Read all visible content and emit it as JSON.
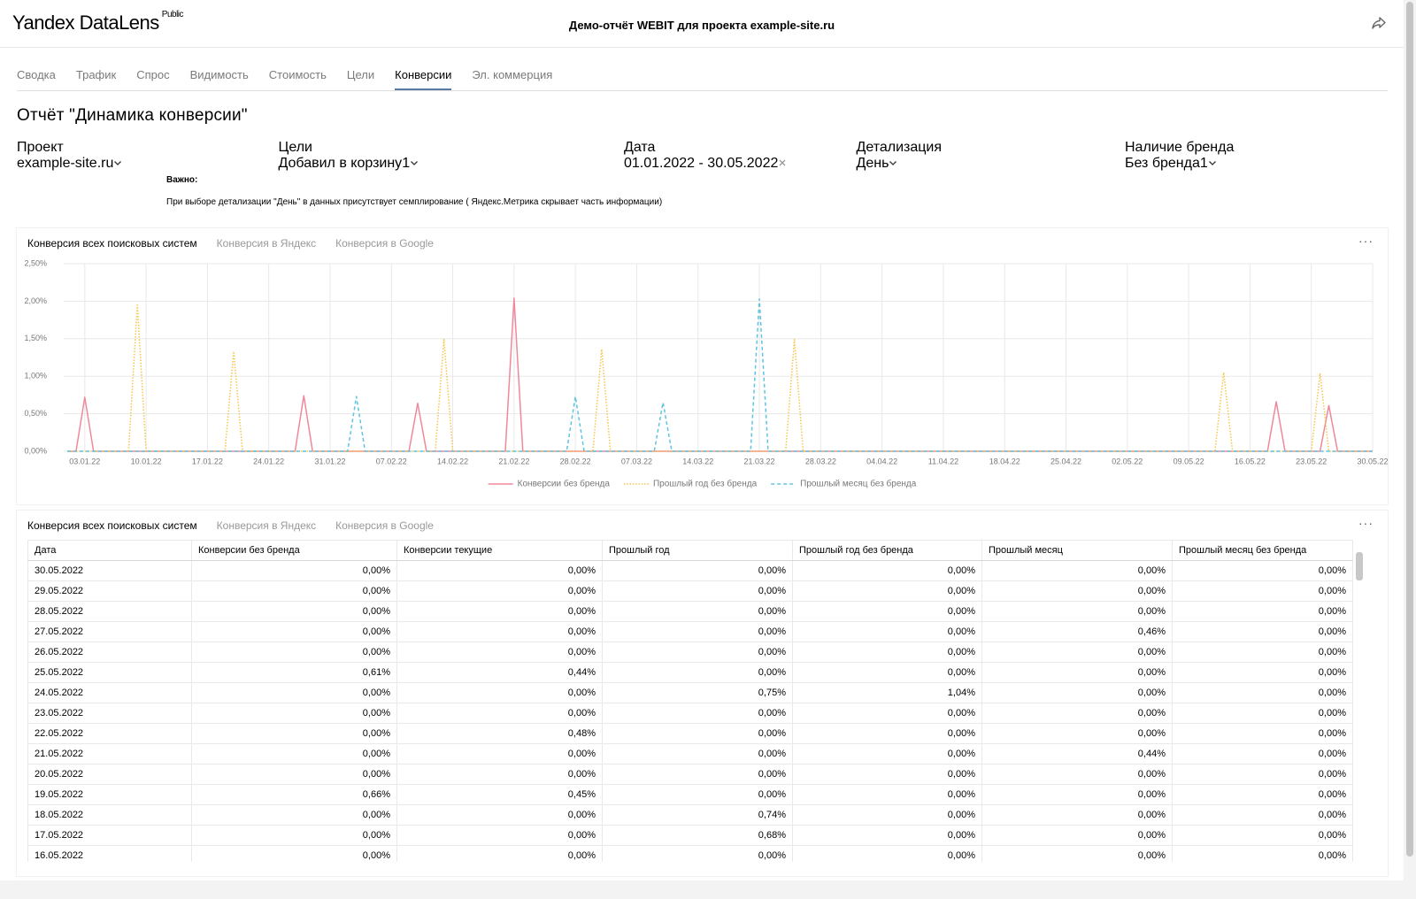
{
  "header": {
    "logo": "Yandex DataLens",
    "badge": "Public",
    "title": "Демо-отчёт WEBIT для проекта example-site.ru"
  },
  "tabs": {
    "items": [
      "Сводка",
      "Трафик",
      "Спрос",
      "Видимость",
      "Стоимость",
      "Цели",
      "Конверсии",
      "Эл. коммерция"
    ],
    "active": 6
  },
  "report_title": "Отчёт \"Динамика конверсии\"",
  "filters": [
    {
      "label": "Проект",
      "value": "example-site.ru",
      "icon": "chevron"
    },
    {
      "label": "Цели",
      "value": "Добавил в корзину",
      "count": 1,
      "icon": "chevron"
    },
    {
      "label": "Дата",
      "value": "01.01.2022 - 30.05.2022",
      "icon": "clear"
    },
    {
      "label": "Детализация",
      "value": "День",
      "icon": "chevron"
    },
    {
      "label": "Наличие бренда",
      "value": "Без бренда",
      "count": 1,
      "icon": "chevron"
    }
  ],
  "notice": {
    "title": "Важно:",
    "text": "При выборе детализации \"День\" в данных присутствует семплирование ( Яндекс.Метрика скрывает часть информации)"
  },
  "chart_tabs": {
    "items": [
      "Конверсия всех поисковых систем",
      "Конверсия в Яндекс",
      "Конверсия в Google"
    ],
    "active": 0
  },
  "chart_data": {
    "type": "line",
    "grid": true,
    "x": [
      "01.01.22",
      "02.01.22",
      "03.01.22",
      "04.01.22",
      "05.01.22",
      "06.01.22",
      "07.01.22",
      "08.01.22",
      "09.01.22",
      "10.01.22",
      "11.01.22",
      "12.01.22",
      "13.01.22",
      "14.01.22",
      "15.01.22",
      "16.01.22",
      "17.01.22",
      "18.01.22",
      "19.01.22",
      "20.01.22",
      "21.01.22",
      "22.01.22",
      "23.01.22",
      "24.01.22",
      "25.01.22",
      "26.01.22",
      "27.01.22",
      "28.01.22",
      "29.01.22",
      "30.01.22",
      "31.01.22",
      "01.02.22",
      "02.02.22",
      "03.02.22",
      "04.02.22",
      "05.02.22",
      "06.02.22",
      "07.02.22",
      "08.02.22",
      "09.02.22",
      "10.02.22",
      "11.02.22",
      "12.02.22",
      "13.02.22",
      "14.02.22",
      "15.02.22",
      "16.02.22",
      "17.02.22",
      "18.02.22",
      "19.02.22",
      "20.02.22",
      "21.02.22",
      "22.02.22",
      "23.02.22",
      "24.02.22",
      "25.02.22",
      "26.02.22",
      "27.02.22",
      "28.02.22",
      "01.03.22",
      "02.03.22",
      "03.03.22",
      "04.03.22",
      "05.03.22",
      "06.03.22",
      "07.03.22",
      "08.03.22",
      "09.03.22",
      "10.03.22",
      "11.03.22",
      "12.03.22",
      "13.03.22",
      "14.03.22",
      "15.03.22",
      "16.03.22",
      "17.03.22",
      "18.03.22",
      "19.03.22",
      "20.03.22",
      "21.03.22",
      "22.03.22",
      "23.03.22",
      "24.03.22",
      "25.03.22",
      "26.03.22",
      "27.03.22",
      "28.03.22",
      "29.03.22",
      "30.03.22",
      "31.03.22",
      "01.04.22",
      "02.04.22",
      "03.04.22",
      "04.04.22",
      "05.04.22",
      "06.04.22",
      "07.04.22",
      "08.04.22",
      "09.04.22",
      "10.04.22",
      "11.04.22",
      "12.04.22",
      "13.04.22",
      "14.04.22",
      "15.04.22",
      "16.04.22",
      "17.04.22",
      "18.04.22",
      "19.04.22",
      "20.04.22",
      "21.04.22",
      "22.04.22",
      "23.04.22",
      "24.04.22",
      "25.04.22",
      "26.04.22",
      "27.04.22",
      "28.04.22",
      "29.04.22",
      "30.04.22",
      "01.05.22",
      "02.05.22",
      "03.05.22",
      "04.05.22",
      "05.05.22",
      "06.05.22",
      "07.05.22",
      "08.05.22",
      "09.05.22",
      "10.05.22",
      "11.05.22",
      "12.05.22",
      "13.05.22",
      "14.05.22",
      "15.05.22",
      "16.05.22",
      "17.05.22",
      "18.05.22",
      "19.05.22",
      "20.05.22",
      "21.05.22",
      "22.05.22",
      "23.05.22",
      "24.05.22",
      "25.05.22",
      "26.05.22",
      "27.05.22",
      "28.05.22",
      "29.05.22",
      "30.05.22"
    ],
    "xticks": [
      "03.01.22",
      "10.01.22",
      "17.01.22",
      "24.01.22",
      "31.01.22",
      "07.02.22",
      "14.02.22",
      "21.02.22",
      "28.02.22",
      "07.03.22",
      "14.03.22",
      "21.03.22",
      "28.03.22",
      "04.04.22",
      "11.04.22",
      "18.04.22",
      "25.04.22",
      "02.05.22",
      "09.05.22",
      "16.05.22",
      "23.05.22",
      "30.05.22"
    ],
    "ylim": [
      0,
      2.5
    ],
    "yticks": [
      {
        "value": 0,
        "label": "0,00%"
      },
      {
        "value": 0.5,
        "label": "0,50%"
      },
      {
        "value": 1,
        "label": "1,00%"
      },
      {
        "value": 1.5,
        "label": "1,50%"
      },
      {
        "value": 2,
        "label": "2,00%"
      },
      {
        "value": 2.5,
        "label": "2,50%"
      }
    ],
    "series": [
      {
        "name": "Конверсии без бренда",
        "color": "#f0889b",
        "dash": "solid",
        "values": [
          0,
          0,
          0.72,
          0,
          0,
          0,
          0,
          0,
          0,
          0,
          0,
          0,
          0,
          0,
          0,
          0,
          0,
          0,
          0,
          0,
          0,
          0,
          0,
          0,
          0,
          0,
          0,
          0.74,
          0,
          0,
          0,
          0,
          0,
          0,
          0,
          0,
          0,
          0,
          0,
          0,
          0.64,
          0,
          0,
          0,
          0,
          0,
          0,
          0,
          0,
          0,
          0,
          2.04,
          0,
          0,
          0,
          0,
          0,
          0,
          0,
          0,
          0,
          0,
          0,
          0,
          0,
          0,
          0,
          0,
          0,
          0,
          0,
          0,
          0,
          0,
          0,
          0,
          0,
          0,
          0,
          0,
          0,
          0,
          0,
          0,
          0,
          0,
          0,
          0,
          0,
          0,
          0,
          0,
          0,
          0,
          0,
          0,
          0,
          0,
          0,
          0,
          0,
          0,
          0,
          0,
          0,
          0,
          0,
          0,
          0,
          0,
          0,
          0,
          0,
          0,
          0,
          0,
          0,
          0,
          0,
          0,
          0,
          0,
          0,
          0,
          0,
          0,
          0,
          0,
          0,
          0,
          0,
          0,
          0,
          0,
          0,
          0,
          0,
          0,
          0.66,
          0,
          0,
          0,
          0,
          0,
          0.61,
          0,
          0,
          0,
          0,
          0
        ]
      },
      {
        "name": "Прошлый год без бренда",
        "color": "#f5c548",
        "dash": "dotted",
        "values": [
          0,
          0,
          0,
          0,
          0,
          0,
          0,
          0,
          1.95,
          0,
          0,
          0,
          0,
          0,
          0,
          0,
          0,
          0,
          0,
          1.33,
          0,
          0,
          0,
          0,
          0,
          0,
          0,
          0,
          0,
          0,
          0,
          0,
          0,
          0,
          0,
          0,
          0,
          0,
          0,
          0,
          0,
          0,
          0,
          1.49,
          0,
          0,
          0,
          0,
          0,
          0,
          0,
          0,
          0,
          0,
          0,
          0,
          0,
          0,
          0,
          0,
          0,
          1.36,
          0,
          0,
          0,
          0,
          0,
          0,
          0,
          0,
          0,
          0,
          0,
          0,
          0,
          0,
          0,
          0,
          0,
          0,
          0,
          0,
          0,
          1.49,
          0,
          0,
          0,
          0,
          0,
          0,
          0,
          0,
          0,
          0,
          0,
          0,
          0,
          0,
          0,
          0,
          0,
          0,
          0,
          0,
          0,
          0,
          0,
          0,
          0,
          0,
          0,
          0,
          0,
          0,
          0,
          0,
          0,
          0,
          0,
          0,
          0,
          0,
          0,
          0,
          0,
          0,
          0,
          0,
          0,
          0,
          0,
          0,
          1.05,
          0,
          0,
          0,
          0,
          0,
          0,
          0,
          0,
          0,
          0,
          1.04,
          0,
          0,
          0,
          0,
          0,
          0
        ]
      },
      {
        "name": "Прошлый месяц без бренда",
        "color": "#5fc4e0",
        "dash": "dashed",
        "values": [
          0,
          0,
          0,
          0,
          0,
          0,
          0,
          0,
          0,
          0,
          0,
          0,
          0,
          0,
          0,
          0,
          0,
          0,
          0,
          0,
          0,
          0,
          0,
          0,
          0,
          0,
          0,
          0,
          0,
          0,
          0,
          0,
          0,
          0.73,
          0,
          0,
          0,
          0,
          0,
          0,
          0,
          0,
          0,
          0,
          0,
          0,
          0,
          0,
          0,
          0,
          0,
          0,
          0,
          0,
          0,
          0,
          0,
          0,
          0.73,
          0,
          0,
          0,
          0,
          0,
          0,
          0,
          0,
          0,
          0.65,
          0,
          0,
          0,
          0,
          0,
          0,
          0,
          0,
          0,
          0,
          2.03,
          0,
          0,
          0,
          0,
          0,
          0,
          0,
          0,
          0,
          0,
          0,
          0,
          0,
          0,
          0,
          0,
          0,
          0,
          0,
          0,
          0,
          0,
          0,
          0,
          0,
          0,
          0,
          0,
          0,
          0,
          0,
          0,
          0,
          0,
          0,
          0,
          0,
          0,
          0,
          0,
          0,
          0,
          0,
          0,
          0,
          0,
          0,
          0,
          0,
          0,
          0,
          0,
          0,
          0,
          0,
          0,
          0,
          0,
          0,
          0,
          0,
          0,
          0,
          0,
          0,
          0,
          0,
          0,
          0,
          0
        ]
      }
    ]
  },
  "table_tabs": {
    "items": [
      "Конверсия всех поисковых систем",
      "Конверсия в Яндекс",
      "Конверсия в Google"
    ],
    "active": 0
  },
  "table": {
    "columns": [
      "Дата",
      "Конверсии без бренда",
      "Конверсии текущие",
      "Прошлый год",
      "Прошлый год без бренда",
      "Прошлый месяц",
      "Прошлый месяц без бренда"
    ],
    "rows": [
      [
        "30.05.2022",
        "0,00%",
        "0,00%",
        "0,00%",
        "0,00%",
        "0,00%",
        "0,00%"
      ],
      [
        "29.05.2022",
        "0,00%",
        "0,00%",
        "0,00%",
        "0,00%",
        "0,00%",
        "0,00%"
      ],
      [
        "28.05.2022",
        "0,00%",
        "0,00%",
        "0,00%",
        "0,00%",
        "0,00%",
        "0,00%"
      ],
      [
        "27.05.2022",
        "0,00%",
        "0,00%",
        "0,00%",
        "0,00%",
        "0,46%",
        "0,00%"
      ],
      [
        "26.05.2022",
        "0,00%",
        "0,00%",
        "0,00%",
        "0,00%",
        "0,00%",
        "0,00%"
      ],
      [
        "25.05.2022",
        "0,61%",
        "0,44%",
        "0,00%",
        "0,00%",
        "0,00%",
        "0,00%"
      ],
      [
        "24.05.2022",
        "0,00%",
        "0,00%",
        "0,75%",
        "1,04%",
        "0,00%",
        "0,00%"
      ],
      [
        "23.05.2022",
        "0,00%",
        "0,00%",
        "0,00%",
        "0,00%",
        "0,00%",
        "0,00%"
      ],
      [
        "22.05.2022",
        "0,00%",
        "0,48%",
        "0,00%",
        "0,00%",
        "0,00%",
        "0,00%"
      ],
      [
        "21.05.2022",
        "0,00%",
        "0,00%",
        "0,00%",
        "0,00%",
        "0,44%",
        "0,00%"
      ],
      [
        "20.05.2022",
        "0,00%",
        "0,00%",
        "0,00%",
        "0,00%",
        "0,00%",
        "0,00%"
      ],
      [
        "19.05.2022",
        "0,66%",
        "0,45%",
        "0,00%",
        "0,00%",
        "0,00%",
        "0,00%"
      ],
      [
        "18.05.2022",
        "0,00%",
        "0,00%",
        "0,74%",
        "0,00%",
        "0,00%",
        "0,00%"
      ],
      [
        "17.05.2022",
        "0,00%",
        "0,00%",
        "0,68%",
        "0,00%",
        "0,00%",
        "0,00%"
      ],
      [
        "16.05.2022",
        "0,00%",
        "0,00%",
        "0,00%",
        "0,00%",
        "0,00%",
        "0,00%"
      ]
    ]
  }
}
